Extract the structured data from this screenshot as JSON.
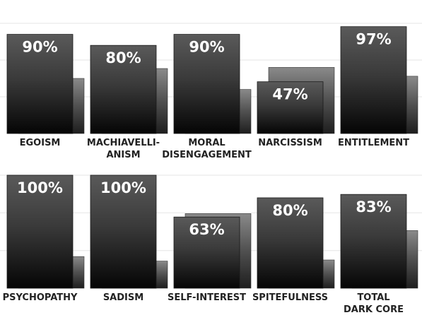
{
  "chart_data": {
    "type": "bar",
    "ylim": [
      0,
      100
    ],
    "grid": true,
    "series": [
      {
        "values": [
          90,
          80,
          90,
          47,
          97,
          100,
          100,
          63,
          80,
          83
        ]
      },
      {
        "values": [
          50,
          59,
          40,
          60,
          52,
          28,
          24,
          66,
          25,
          51
        ]
      }
    ],
    "categories": [
      [
        "EGOISM"
      ],
      [
        "MACHIAVELLI-",
        "ANISM"
      ],
      [
        "MORAL",
        "DISENGAGEMENT"
      ],
      [
        "NARCISSISM"
      ],
      [
        "ENTITLEMENT"
      ],
      [
        "PSYCHOPATHY"
      ],
      [
        "SADISM"
      ],
      [
        "SELF-INTEREST"
      ],
      [
        "SPITEFULNESS"
      ],
      [
        "TOTAL",
        "DARK CORE"
      ]
    ],
    "value_labels": [
      "90%",
      "80%",
      "90%",
      "47%",
      "97%",
      "100%",
      "100%",
      "63%",
      "80%",
      "83%"
    ],
    "colors": {
      "primary_top": "#5a5a5a",
      "primary_bottom": "#050505",
      "secondary_top": "#8a8a8a",
      "secondary_bottom": "#1e1e1e",
      "grid": "#e6e6e6",
      "label": "#222222"
    }
  }
}
